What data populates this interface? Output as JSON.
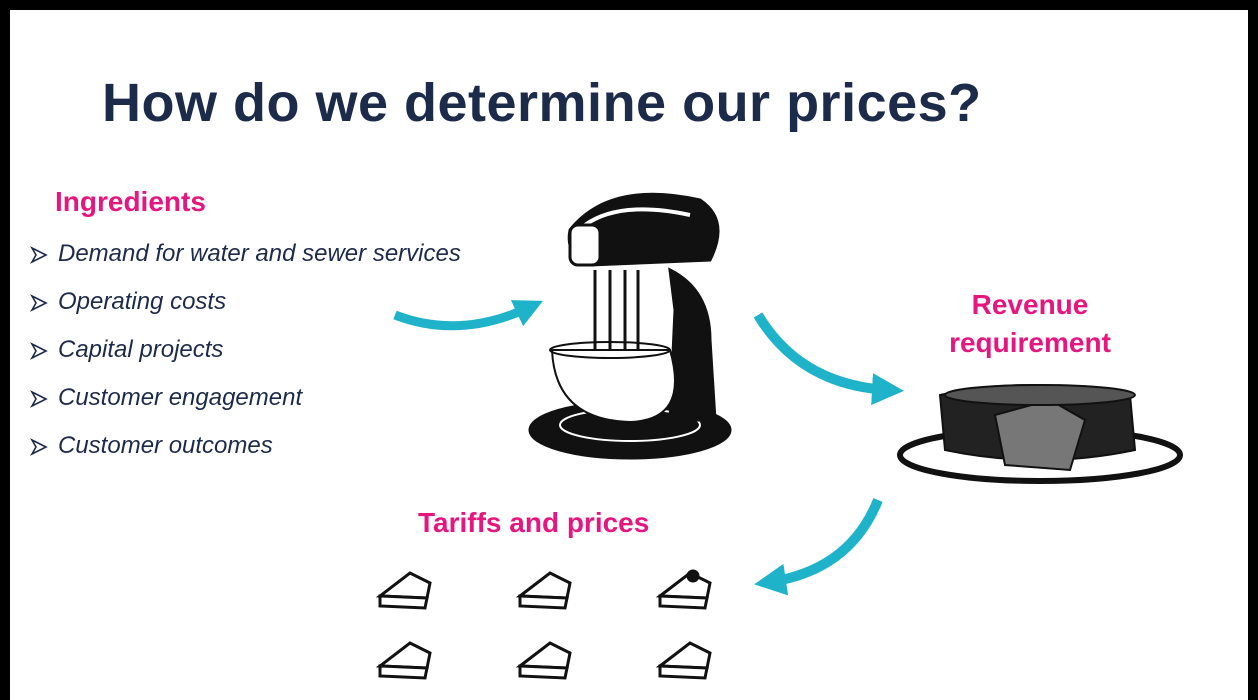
{
  "title": "How do we determine our prices?",
  "ingredients": {
    "heading": "Ingredients",
    "items": [
      "Demand for water and sewer services",
      "Operating costs",
      "Capital projects",
      "Customer engagement",
      "Customer outcomes"
    ]
  },
  "revenue_label": "Revenue requirement",
  "tariffs_label": "Tariffs and prices"
}
